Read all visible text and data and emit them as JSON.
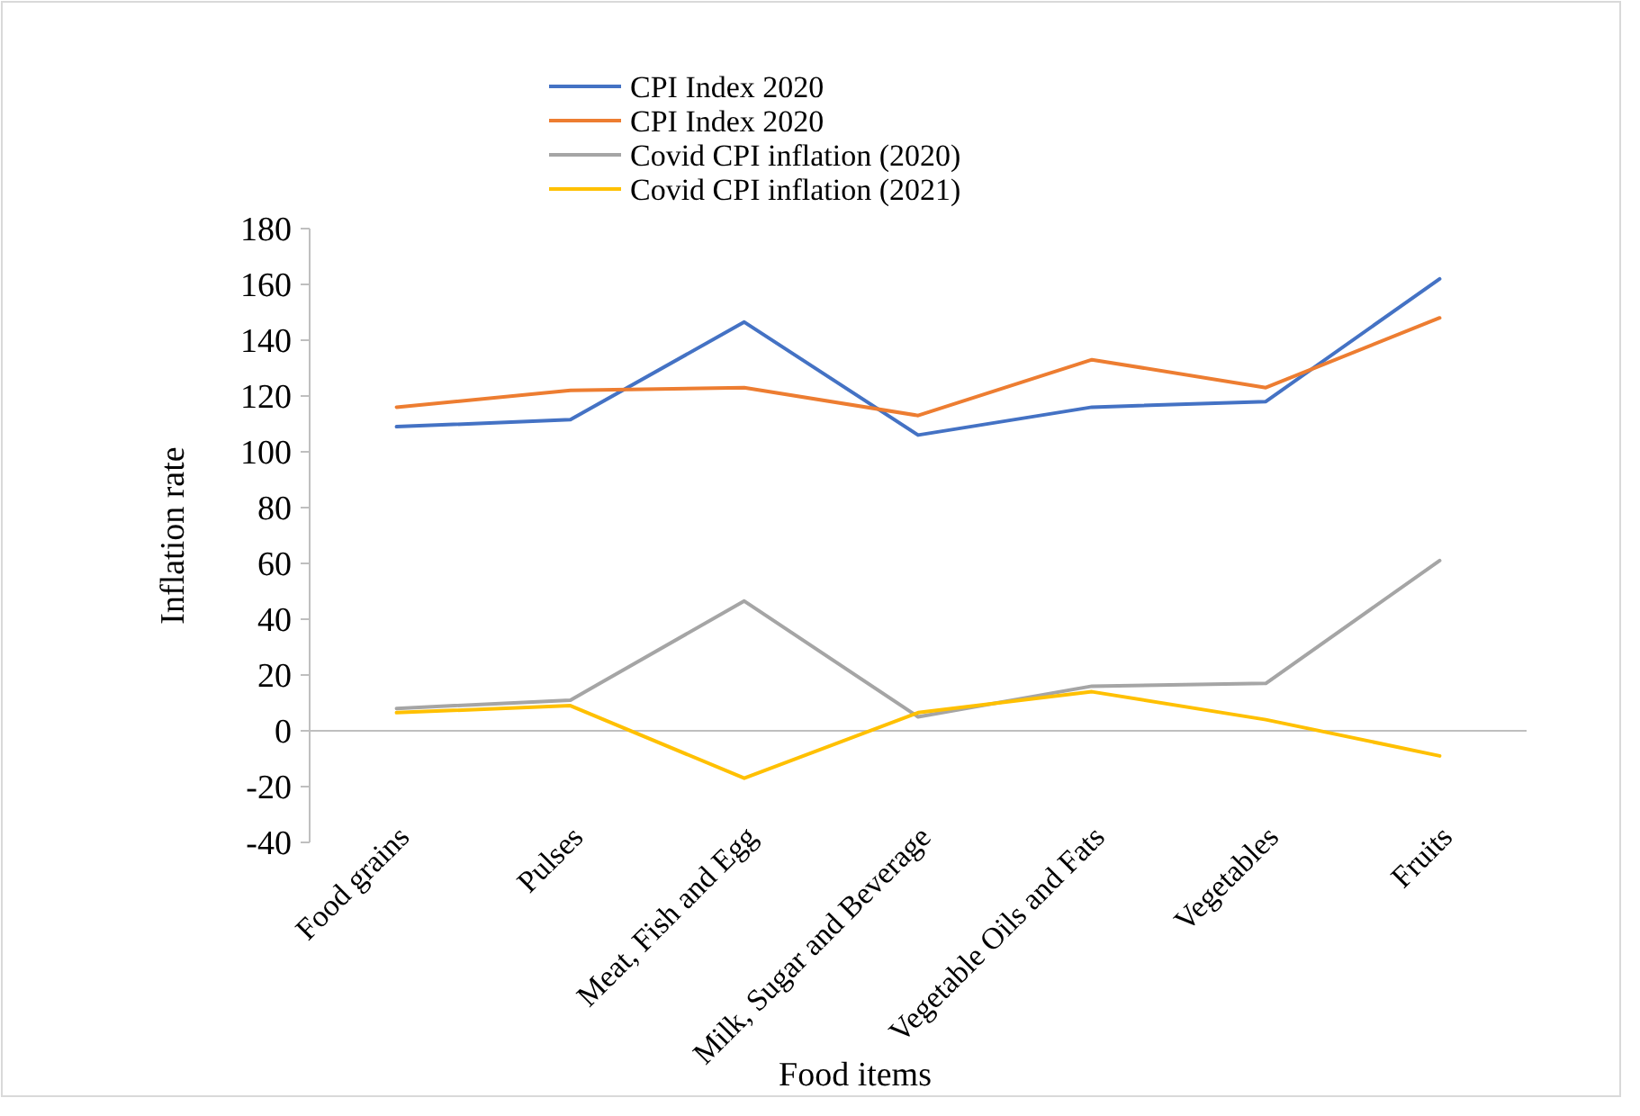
{
  "chart_data": {
    "type": "line",
    "xlabel": "Food items",
    "ylabel": "Inflation rate",
    "categories": [
      "Food grains",
      "Pulses",
      "Meat, Fish and Egg",
      "Milk, Sugar and Beverage",
      "Vegetable Oils and Fats",
      "Vegetables",
      "Fruits"
    ],
    "series": [
      {
        "name": "CPI Index 2020",
        "color": "#4472c4",
        "values": [
          109,
          111.5,
          146.5,
          106,
          116,
          118,
          162
        ]
      },
      {
        "name": "CPI Index 2020",
        "color": "#ed7d31",
        "values": [
          116,
          122,
          123,
          113,
          133,
          123,
          148
        ]
      },
      {
        "name": "Covid CPI inflation (2020)",
        "color": "#a5a5a5",
        "values": [
          8,
          11,
          46.5,
          5,
          16,
          17,
          61
        ]
      },
      {
        "name": "Covid CPI inflation (2021)",
        "color": "#ffc000",
        "values": [
          6.5,
          9,
          -17,
          6.5,
          14,
          4,
          -9
        ]
      }
    ],
    "ylim": [
      -40,
      180
    ],
    "yticks": [
      -40,
      -20,
      0,
      20,
      40,
      60,
      80,
      100,
      120,
      140,
      160,
      180
    ],
    "legend": "top",
    "marker": "none",
    "line_style": "solid"
  }
}
